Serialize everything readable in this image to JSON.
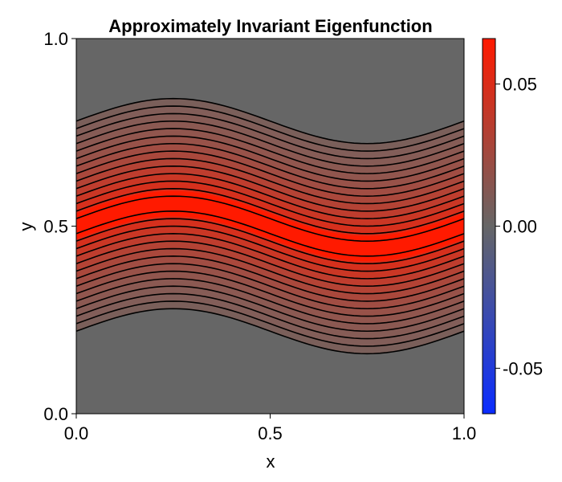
{
  "chart_data": {
    "type": "contour",
    "title": "Approximately Invariant Eigenfunction",
    "xlabel": "x",
    "ylabel": "y",
    "xlim": [
      0.0,
      1.0
    ],
    "ylim": [
      0.0,
      1.0
    ],
    "x_ticks": [
      "0.0",
      "0.5",
      "1.0"
    ],
    "y_ticks": [
      "0.0",
      "0.5",
      "1.0"
    ],
    "field": {
      "center_y": 0.5,
      "amplitude_y": 0.06,
      "half_width_y": 0.28,
      "peak_value": 0.066,
      "outside_value": 0.0
    },
    "contour_levels": 14,
    "colorbar": {
      "range": [
        -0.066,
        0.066
      ],
      "ticks": [
        "0.05",
        "0.00",
        "-0.05"
      ],
      "tick_values": [
        0.05,
        0.0,
        -0.05
      ],
      "colors": {
        "low": "#0000ff",
        "mid": "#666666",
        "high": "#ff1a00"
      }
    },
    "colors": {
      "background": "#666666",
      "band_outer": "#7a5f5a",
      "band_core": "#ff1a00",
      "contour_line": "#000000"
    }
  }
}
